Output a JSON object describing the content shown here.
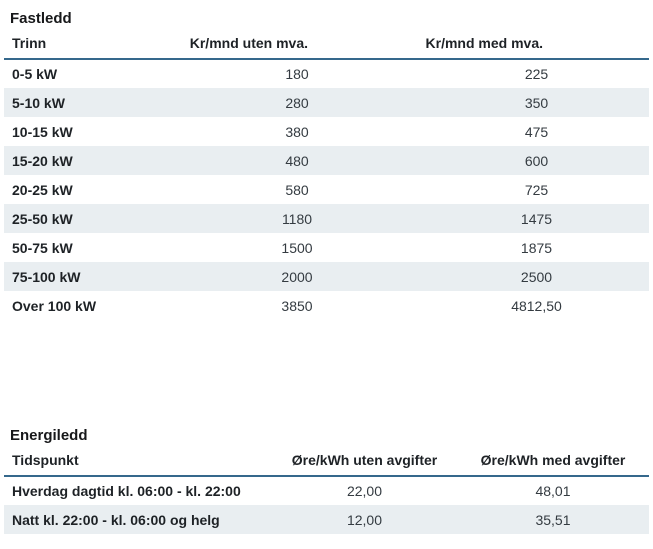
{
  "theme": {
    "accent_border": "#35688c",
    "stripe": "#e9eef1",
    "title_color": "#17181a",
    "label_color": "#1e2226",
    "value_color": "#343b41",
    "page_bg": "#ffffff"
  },
  "fastledd": {
    "title": "Fastledd",
    "columns": [
      "Trinn",
      "Kr/mnd uten mva.",
      "Kr/mnd med mva."
    ],
    "rows": [
      {
        "label": "0-5 kW",
        "uten": "180",
        "med": "225"
      },
      {
        "label": "5-10 kW",
        "uten": "280",
        "med": "350"
      },
      {
        "label": "10-15 kW",
        "uten": "380",
        "med": "475"
      },
      {
        "label": "15-20 kW",
        "uten": "480",
        "med": "600"
      },
      {
        "label": "20-25 kW",
        "uten": "580",
        "med": "725"
      },
      {
        "label": "25-50 kW",
        "uten": "1180",
        "med": "1475"
      },
      {
        "label": "50-75 kW",
        "uten": "1500",
        "med": "1875"
      },
      {
        "label": "75-100 kW",
        "uten": "2000",
        "med": "2500"
      },
      {
        "label": "Over 100 kW",
        "uten": "3850",
        "med": "4812,50"
      }
    ]
  },
  "energiledd": {
    "title": "Energiledd",
    "columns": [
      "Tidspunkt",
      "Øre/kWh uten avgifter",
      "Øre/kWh med avgifter"
    ],
    "rows": [
      {
        "label": "Hverdag dagtid kl. 06:00 - kl. 22:00",
        "uten": "22,00",
        "med": "48,01"
      },
      {
        "label": "Natt kl. 22:00 - kl. 06:00 og helg",
        "uten": "12,00",
        "med": "35,51"
      }
    ]
  }
}
